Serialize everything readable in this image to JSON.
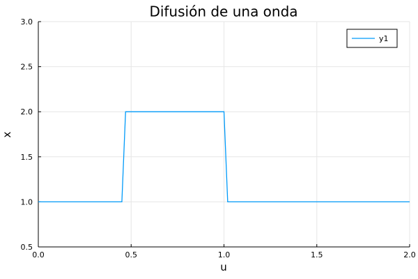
{
  "chart_data": {
    "type": "line",
    "title": "Difusión de una onda",
    "xlabel": "u",
    "ylabel": "x",
    "xlim": [
      0.0,
      2.0
    ],
    "ylim": [
      0.5,
      3.0
    ],
    "grid": true,
    "legend_position": "top-right",
    "x_ticks": [
      "0.0",
      "0.5",
      "1.0",
      "1.5",
      "2.0"
    ],
    "y_ticks": [
      "0.5",
      "1.0",
      "1.5",
      "2.0",
      "2.5",
      "3.0"
    ],
    "series": [
      {
        "name": "y1",
        "color": "#009af9",
        "x": [
          0.0,
          0.45,
          0.47,
          1.0,
          1.02,
          2.0
        ],
        "y": [
          1.0,
          1.0,
          2.0,
          2.0,
          1.0,
          1.0
        ]
      }
    ]
  }
}
